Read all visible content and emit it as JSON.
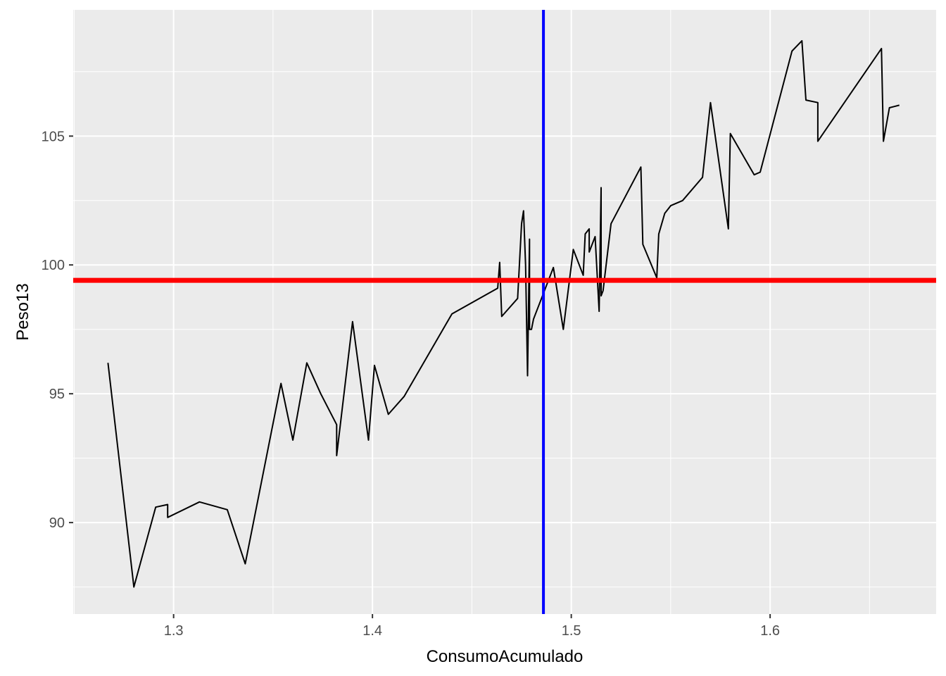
{
  "chart_data": {
    "type": "line",
    "title": "",
    "xlabel": "ConsumoAcumulado",
    "ylabel": "Peso13",
    "xlim": [
      1.2495,
      1.6835
    ],
    "ylim": [
      86.45,
      109.9
    ],
    "x_ticks": [
      1.3,
      1.4,
      1.5,
      1.6
    ],
    "y_ticks": [
      90,
      95,
      100,
      105
    ],
    "grid": true,
    "legend": "none",
    "series": [
      {
        "color": "#000000",
        "x": [
          1.267,
          1.28,
          1.291,
          1.297,
          1.297,
          1.313,
          1.327,
          1.336,
          1.354,
          1.36,
          1.367,
          1.374,
          1.382,
          1.382,
          1.39,
          1.398,
          1.401,
          1.408,
          1.416,
          1.44,
          1.463,
          1.464,
          1.465,
          1.473,
          1.475,
          1.476,
          1.477,
          1.478,
          1.479,
          1.479,
          1.48,
          1.481,
          1.485,
          1.491,
          1.496,
          1.501,
          1.506,
          1.507,
          1.509,
          1.509,
          1.512,
          1.514,
          1.515,
          1.515,
          1.516,
          1.52,
          1.535,
          1.536,
          1.543,
          1.544,
          1.547,
          1.55,
          1.556,
          1.566,
          1.57,
          1.579,
          1.58,
          1.592,
          1.595,
          1.611,
          1.616,
          1.618,
          1.624,
          1.624,
          1.656,
          1.657,
          1.66,
          1.665
        ],
        "y": [
          96.2,
          87.5,
          90.6,
          90.7,
          90.2,
          90.8,
          90.5,
          88.4,
          95.4,
          93.2,
          96.2,
          95.0,
          93.8,
          92.6,
          97.8,
          93.2,
          96.1,
          94.2,
          94.9,
          98.1,
          99.1,
          100.1,
          98.0,
          98.7,
          101.6,
          102.1,
          100.0,
          95.7,
          101.0,
          97.5,
          97.5,
          97.9,
          98.7,
          99.9,
          97.5,
          100.6,
          99.6,
          101.2,
          101.4,
          100.5,
          101.1,
          98.2,
          103.0,
          98.8,
          99.0,
          101.6,
          103.8,
          100.8,
          99.5,
          101.2,
          102.0,
          102.3,
          102.5,
          103.4,
          106.3,
          101.4,
          105.1,
          103.5,
          103.6,
          108.3,
          108.7,
          106.4,
          106.3,
          104.8,
          108.4,
          104.8,
          106.1,
          106.2
        ]
      }
    ],
    "reference_lines": [
      {
        "orientation": "vertical",
        "value": 1.486,
        "color": "#0000FF"
      },
      {
        "orientation": "horizontal",
        "value": 99.4,
        "color": "#FF0000"
      }
    ],
    "colors": {
      "panel_background": "#EBEBEB",
      "grid_line": "#FFFFFF",
      "tick_text": "#4D4D4D",
      "tick_mark": "#333333"
    }
  }
}
